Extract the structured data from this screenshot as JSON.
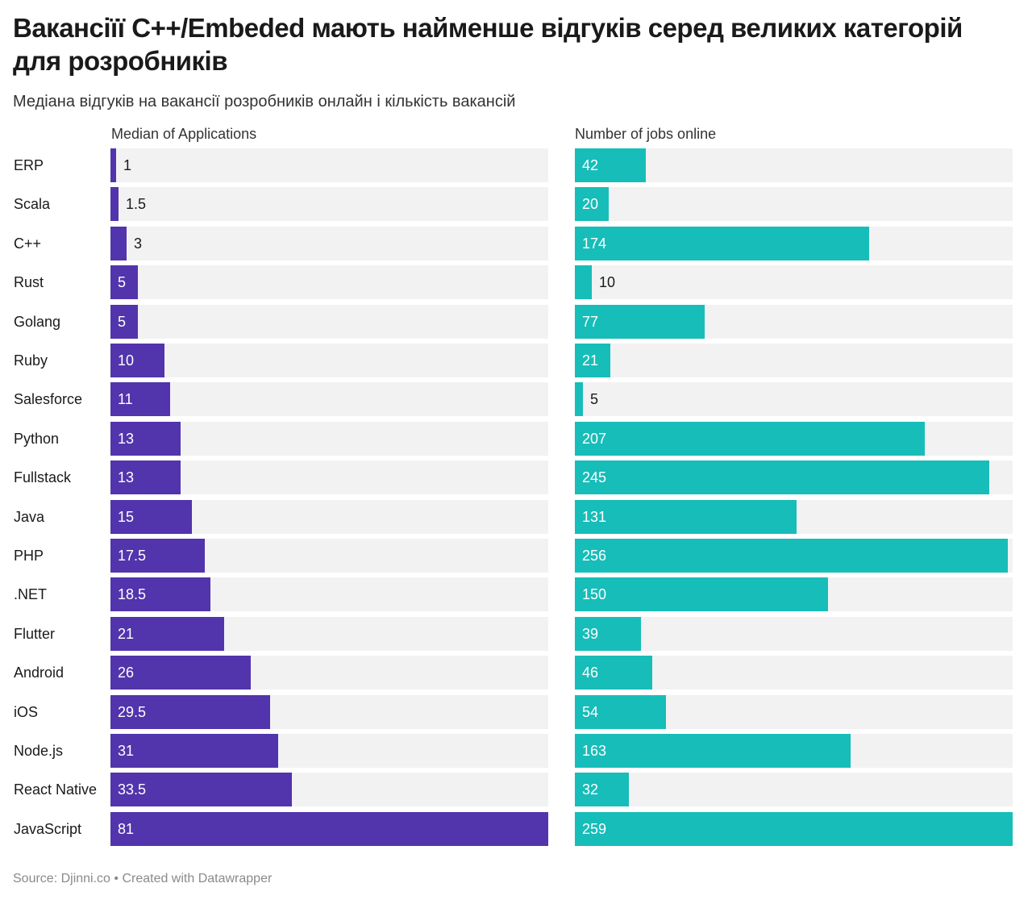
{
  "title": "Вакансіїї С++/Embeded мають найменше відгуків серед великих категорій для розробників",
  "subtitle": "Медіана відгуків на вакансії розробників онлайн і кількість вакансій",
  "footer": "Source: Djinni.co • Created with Datawrapper",
  "colors": {
    "left_bar": "#5234ac",
    "right_bar": "#17bdb8",
    "track": "#f2f2f2"
  },
  "chart_data": {
    "type": "bar",
    "orientation": "horizontal",
    "categories": [
      "ERP",
      "Scala",
      "C++",
      "Rust",
      "Golang",
      "Ruby",
      "Salesforce",
      "Python",
      "Fullstack",
      "Java",
      "PHP",
      ".NET",
      "Flutter",
      "Android",
      "iOS",
      "Node.js",
      "React Native",
      "JavaScript"
    ],
    "series": [
      {
        "name": "Median of Applications",
        "values": [
          1,
          1.5,
          3,
          5,
          5,
          10,
          11,
          13,
          13,
          15,
          17.5,
          18.5,
          21,
          26,
          29.5,
          31,
          33.5,
          81
        ],
        "xlim": [
          0,
          81
        ]
      },
      {
        "name": "Number of jobs online",
        "values": [
          42,
          20,
          174,
          10,
          77,
          21,
          5,
          207,
          245,
          131,
          256,
          150,
          39,
          46,
          54,
          163,
          32,
          259
        ],
        "xlim": [
          0,
          259
        ]
      }
    ],
    "legend": "none",
    "grid": false
  }
}
